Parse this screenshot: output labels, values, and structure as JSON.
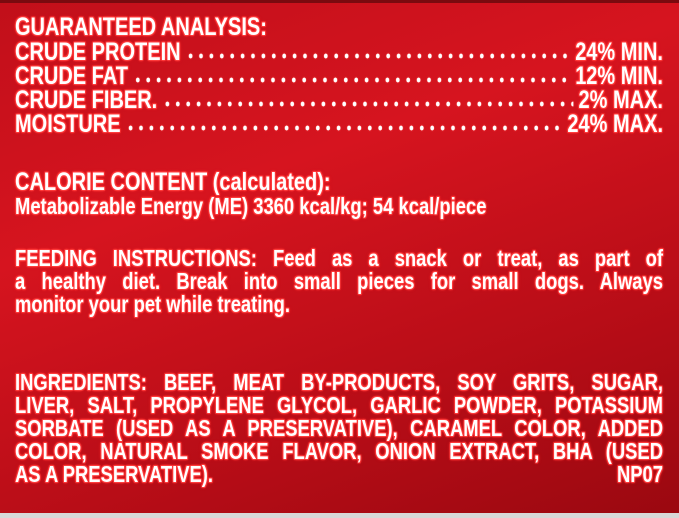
{
  "analysis": {
    "title": "GUARANTEED ANALYSIS:",
    "rows": [
      {
        "label": "CRUDE PROTEIN",
        "value": "24% MIN."
      },
      {
        "label": "CRUDE FAT",
        "value": "12% MIN."
      },
      {
        "label": "CRUDE FIBER.",
        "value": "2% MAX."
      },
      {
        "label": "MOISTURE",
        "value": "24% MAX."
      }
    ]
  },
  "calorie": {
    "title": "CALORIE CONTENT (calculated):",
    "text": "Metabolizable Energy (ME) 3360 kcal/kg; 54 kcal/piece"
  },
  "feeding": {
    "lines": [
      "FEEDING INSTRUCTIONS: Feed as a snack or treat, as part of",
      "a healthy diet. Break into small pieces for small dogs. Always",
      "monitor your pet while treating."
    ]
  },
  "ingredients": {
    "lines": [
      "INGREDIENTS: BEEF, MEAT BY-PRODUCTS, SOY GRITS, SUGAR,",
      "LIVER, SALT, PROPYLENE GLYCOL, GARLIC POWDER, POTASSIUM",
      "SORBATE (USED AS A PRESERVATIVE), CARAMEL COLOR, ADDED",
      "COLOR, NATURAL SMOKE FLAVOR, ONION EXTRACT, BHA (USED",
      "AS A PRESERVATIVE)."
    ],
    "code": "NP07"
  },
  "colors": {
    "background": "#c10f1a",
    "text": "#ffffff",
    "outline": "#ff3a3a"
  }
}
